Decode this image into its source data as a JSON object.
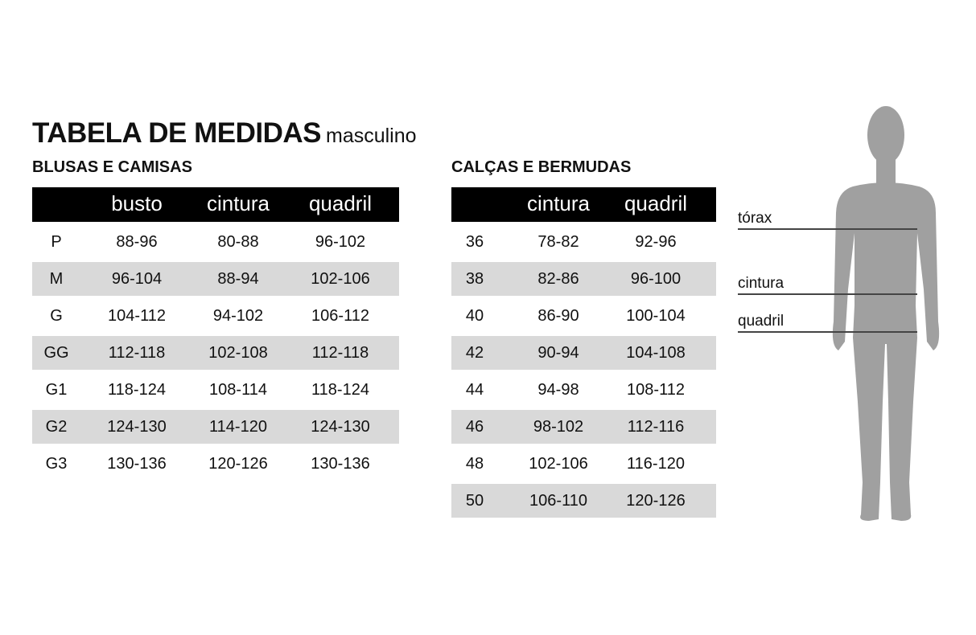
{
  "title": "TABELA DE MEDIDAS",
  "subtitle": "masculino",
  "shirts": {
    "heading": "BLUSAS E CAMISAS",
    "columns": [
      "",
      "busto",
      "cintura",
      "quadril"
    ],
    "rows": [
      [
        "P",
        "88-96",
        "80-88",
        "96-102"
      ],
      [
        "M",
        "96-104",
        "88-94",
        "102-106"
      ],
      [
        "G",
        "104-112",
        "94-102",
        "106-112"
      ],
      [
        "GG",
        "112-118",
        "102-108",
        "112-118"
      ],
      [
        "G1",
        "118-124",
        "108-114",
        "118-124"
      ],
      [
        "G2",
        "124-130",
        "114-120",
        "124-130"
      ],
      [
        "G3",
        "130-136",
        "120-126",
        "130-136"
      ]
    ]
  },
  "pants": {
    "heading": "CALÇAS E BERMUDAS",
    "columns": [
      "",
      "cintura",
      "quadril"
    ],
    "rows": [
      [
        "36",
        "78-82",
        "92-96"
      ],
      [
        "38",
        "82-86",
        "96-100"
      ],
      [
        "40",
        "86-90",
        "100-104"
      ],
      [
        "42",
        "90-94",
        "104-108"
      ],
      [
        "44",
        "94-98",
        "108-112"
      ],
      [
        "46",
        "98-102",
        "112-116"
      ],
      [
        "48",
        "102-106",
        "116-120"
      ],
      [
        "50",
        "106-110",
        "120-126"
      ]
    ]
  },
  "figure": {
    "labels": [
      "tórax",
      "cintura",
      "quadril"
    ],
    "body_color": "#a0a0a0",
    "line_color": "#444444",
    "stripe_color": "#d9d9d9"
  }
}
